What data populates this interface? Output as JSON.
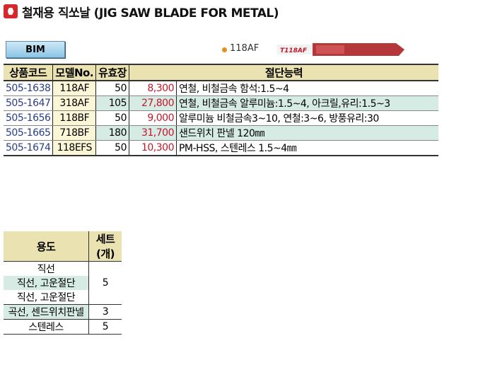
{
  "title": "철재용 직쏘날 (JIG SAW BLADE FOR METAL)",
  "badge": "BIM",
  "featured_model": "118AF",
  "blade_image_text": "T118AF",
  "accent_colors": {
    "header": "#ebe2b2",
    "alt_row": "#d6ebe4",
    "price": "#c4182a",
    "logo": "#d8262a"
  },
  "table": {
    "headers": [
      "상품코드",
      "모델No.",
      "유효장",
      "절단능력"
    ],
    "rows": [
      {
        "code": "505-1638",
        "model": "118AF",
        "count": "50",
        "price": "8,300",
        "desc": "연철, 비철금속 함석:1.5~4"
      },
      {
        "code": "505-1647",
        "model": "318AF",
        "count": "105",
        "price": "27,800",
        "desc": "연철, 비철금속 알루미늄:1.5~4, 아크릴,유리:1.5~3"
      },
      {
        "code": "505-1656",
        "model": "118BF",
        "count": "50",
        "price": "9,000",
        "desc": "알루미늄 비철금속3~10, 연철:3~6, 방풍유리:30"
      },
      {
        "code": "505-1665",
        "model": "718BF",
        "count": "180",
        "price": "31,700",
        "desc": "샌드위치 판넬 120㎜"
      },
      {
        "code": "505-1674",
        "model": "118EFS",
        "count": "50",
        "price": "10,300",
        "desc": "PM-HSS, 스텐레스 1.5~4㎜"
      }
    ]
  },
  "set_table": {
    "headers": [
      "용도",
      "세트(개)"
    ],
    "uses": [
      "직선",
      "직선, 고운절단",
      "직선, 고운절단",
      "곡선, 센드위치판넬",
      "스텐레스"
    ],
    "counts": [
      "5",
      "3",
      "5"
    ]
  }
}
